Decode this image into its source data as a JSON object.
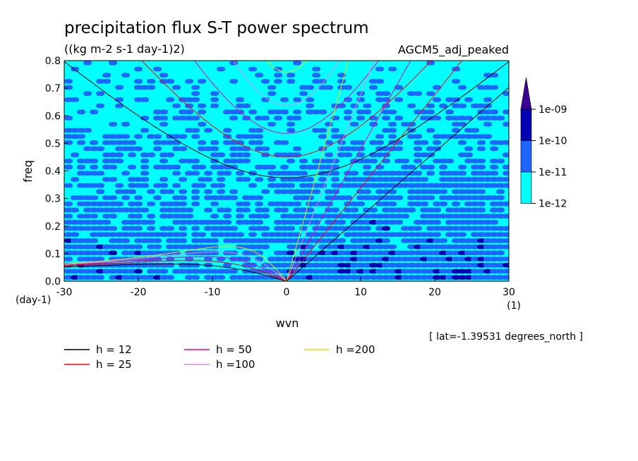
{
  "chart_data": {
    "type": "heatmap",
    "title": "precipitation flux S-T power spectrum",
    "subtitle": "((kg m-2 s-1 day-1)2)",
    "experiment": "AGCM5_adj_peaked",
    "xlabel": "wvn",
    "ylabel": "freq",
    "x_units": "(1)",
    "y_units": "(day-1)",
    "xlim": [
      -30,
      30
    ],
    "ylim": [
      0,
      0.8
    ],
    "x_ticks": [
      "-30",
      "-20",
      "-10",
      "0",
      "10",
      "20",
      "30"
    ],
    "y_ticks": [
      "0.0",
      "0.1",
      "0.2",
      "0.3",
      "0.4",
      "0.5",
      "0.6",
      "0.7",
      "0.8"
    ],
    "location_note": "[ lat=-1.39531 degrees_north ]",
    "colorbar": {
      "labels": [
        "1e-12",
        "1e-11",
        "1e-10",
        "1e-09"
      ],
      "colors": [
        "#ffffff",
        "#00ffff",
        "#1e64ff",
        "#0000b4",
        "#3c0096"
      ],
      "over_color": "#3c0096"
    },
    "series": [
      {
        "name": "h = 12",
        "equivalent_depth": 12,
        "color": "#000000"
      },
      {
        "name": "h = 25",
        "equivalent_depth": 25,
        "color": "#ff0000"
      },
      {
        "name": "h = 50",
        "equivalent_depth": 50,
        "color": "#e600b4"
      },
      {
        "name": "h =100",
        "equivalent_depth": 100,
        "color": "#dc8cdc"
      },
      {
        "name": "h =200",
        "equivalent_depth": 200,
        "color": "#e6dc00"
      }
    ]
  }
}
